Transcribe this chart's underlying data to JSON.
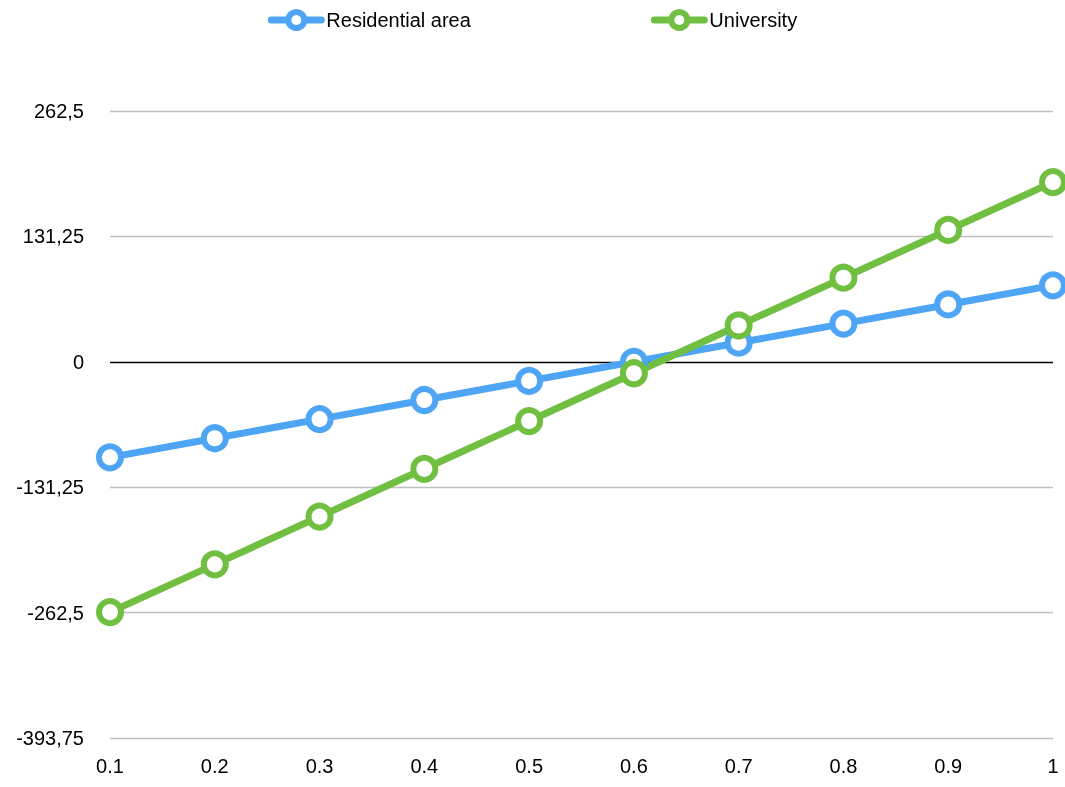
{
  "chart_data": {
    "type": "line",
    "categories": [
      "0.1",
      "0.2",
      "0.3",
      "0.4",
      "0.5",
      "0.6",
      "0.7",
      "0.8",
      "0.9",
      "1"
    ],
    "series": [
      {
        "name": "Residential area",
        "color": "#4ea5f5",
        "values": [
          -100,
          -80,
          -60,
          -40,
          -20,
          0,
          20,
          40,
          60,
          80
        ]
      },
      {
        "name": "University",
        "color": "#70bf41",
        "values": [
          -262,
          -212,
          -162,
          -112,
          -62,
          -12,
          38,
          88,
          138,
          188
        ]
      }
    ],
    "ylim": [
      -393.75,
      262.5
    ],
    "yticks": [
      {
        "value": -393.75,
        "label": "-393,75"
      },
      {
        "value": -262.5,
        "label": "-262,5"
      },
      {
        "value": -131.25,
        "label": "-131,25"
      },
      0,
      {
        "value": 131.25,
        "label": "131,25"
      },
      {
        "value": 262.5,
        "label": "262,5"
      }
    ],
    "grid": "y",
    "legend": "top",
    "marker": "circle",
    "line_style": "solid"
  }
}
